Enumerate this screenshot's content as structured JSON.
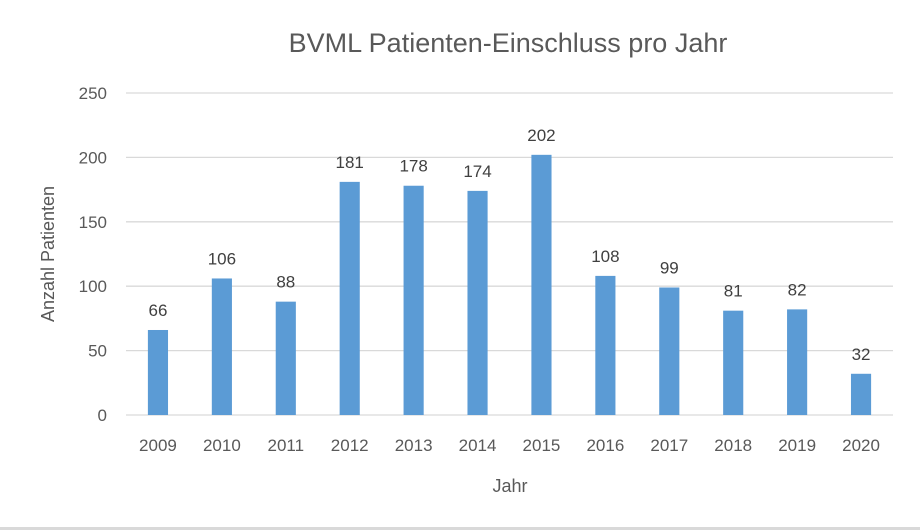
{
  "chart_data": {
    "type": "bar",
    "title": "BVML Patienten-Einschluss pro Jahr",
    "xlabel": "Jahr",
    "ylabel": "Anzahl Patienten",
    "categories": [
      "2009",
      "2010",
      "2011",
      "2012",
      "2013",
      "2014",
      "2015",
      "2016",
      "2017",
      "2018",
      "2019",
      "2020"
    ],
    "series": [
      {
        "name": "Anzahl Patienten",
        "values": [
          66,
          106,
          88,
          181,
          178,
          174,
          202,
          108,
          99,
          81,
          82,
          32
        ],
        "color": "#5b9bd5"
      }
    ],
    "ylim": [
      0,
      250
    ],
    "yticks": [
      0,
      50,
      100,
      150,
      200,
      250
    ],
    "grid": true,
    "data_labels": true,
    "legend": "none"
  }
}
